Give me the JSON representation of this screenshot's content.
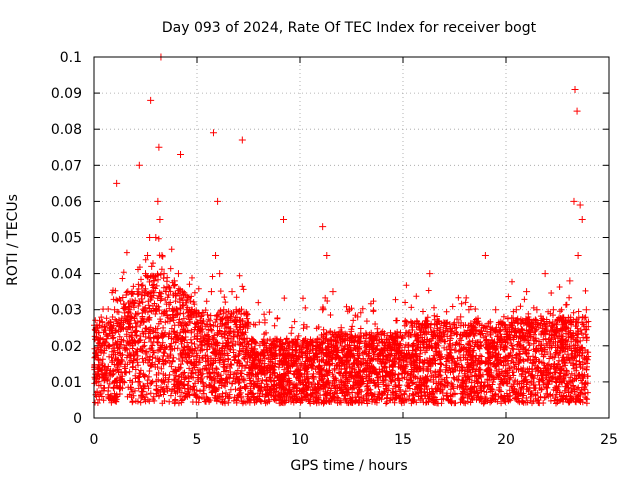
{
  "chart_data": {
    "type": "scatter",
    "title": "Day 093 of 2024, Rate Of TEC Index for receiver bogt",
    "xlabel": "GPS time / hours",
    "ylabel": "ROTI / TECUs",
    "xlim": [
      0,
      25
    ],
    "ylim": [
      0,
      0.1
    ],
    "xticks": [
      0,
      5,
      10,
      15,
      20,
      25
    ],
    "yticks": [
      0,
      0.01,
      0.02,
      0.03,
      0.04,
      0.05,
      0.06,
      0.07,
      0.08,
      0.09,
      0.1
    ],
    "xtick_labels": [
      "0",
      "5",
      "10",
      "15",
      "20",
      "25"
    ],
    "ytick_labels": [
      "0",
      "0.01",
      "0.02",
      "0.03",
      "0.04",
      "0.05",
      "0.06",
      "0.07",
      "0.08",
      "0.09",
      "0.1"
    ],
    "grid": true,
    "marker": "+",
    "color": "#ff0000",
    "series": [
      {
        "name": "ROTI",
        "x": [
          0.1,
          0.3,
          0.5,
          0.8,
          1.0,
          1.2,
          1.5,
          1.7,
          1.9,
          2.1,
          2.3,
          2.5,
          2.6,
          2.7,
          2.8,
          2.9,
          3.0,
          3.1,
          3.2,
          3.3,
          3.4,
          3.5,
          3.7,
          3.9,
          4.1,
          4.3,
          4.5,
          4.7,
          5.0,
          5.2,
          5.5,
          5.7,
          5.9,
          6.1,
          6.3,
          6.5,
          6.7,
          6.9,
          7.1,
          7.3,
          7.5,
          7.8,
          8.0,
          8.3,
          8.6,
          9.0,
          9.3,
          9.6,
          10.0,
          10.4,
          10.8,
          11.1,
          11.3,
          11.6,
          12.0,
          12.4,
          12.8,
          13.2,
          13.6,
          14.0,
          14.5,
          15.0,
          15.5,
          15.9,
          16.3,
          16.8,
          17.3,
          17.8,
          18.2,
          18.7,
          19.0,
          19.5,
          20.0,
          20.5,
          21.0,
          21.5,
          21.9,
          22.3,
          22.8,
          23.1,
          23.3,
          23.5,
          23.7,
          23.9,
          1.1,
          2.2,
          2.75,
          3.15,
          3.25,
          4.2,
          5.8,
          6.0,
          7.2,
          9.2,
          11.1,
          23.35,
          23.45,
          23.6,
          0.4,
          1.4,
          2.4,
          3.6,
          4.6,
          6.2,
          8.8,
          10.2,
          12.2,
          14.2,
          16.0,
          18.0,
          19.1,
          21.0,
          22.6
        ],
        "y": [
          0.018,
          0.022,
          0.02,
          0.025,
          0.03,
          0.024,
          0.028,
          0.03,
          0.032,
          0.035,
          0.033,
          0.04,
          0.045,
          0.05,
          0.042,
          0.038,
          0.05,
          0.06,
          0.055,
          0.045,
          0.04,
          0.035,
          0.032,
          0.038,
          0.04,
          0.035,
          0.03,
          0.028,
          0.022,
          0.02,
          0.026,
          0.035,
          0.045,
          0.04,
          0.03,
          0.028,
          0.035,
          0.03,
          0.025,
          0.022,
          0.018,
          0.015,
          0.016,
          0.018,
          0.02,
          0.015,
          0.017,
          0.016,
          0.018,
          0.02,
          0.018,
          0.03,
          0.045,
          0.035,
          0.025,
          0.03,
          0.028,
          0.022,
          0.02,
          0.018,
          0.02,
          0.016,
          0.02,
          0.025,
          0.04,
          0.025,
          0.022,
          0.028,
          0.03,
          0.026,
          0.045,
          0.03,
          0.025,
          0.03,
          0.035,
          0.03,
          0.04,
          0.03,
          0.025,
          0.038,
          0.06,
          0.045,
          0.055,
          0.03,
          0.065,
          0.07,
          0.088,
          0.075,
          0.1,
          0.073,
          0.079,
          0.06,
          0.077,
          0.055,
          0.053,
          0.091,
          0.085,
          0.059,
          0.012,
          0.01,
          0.012,
          0.01,
          0.008,
          0.009,
          0.006,
          0.008,
          0.009,
          0.008,
          0.01,
          0.007,
          0.009,
          0.008,
          0.01
        ]
      }
    ]
  }
}
